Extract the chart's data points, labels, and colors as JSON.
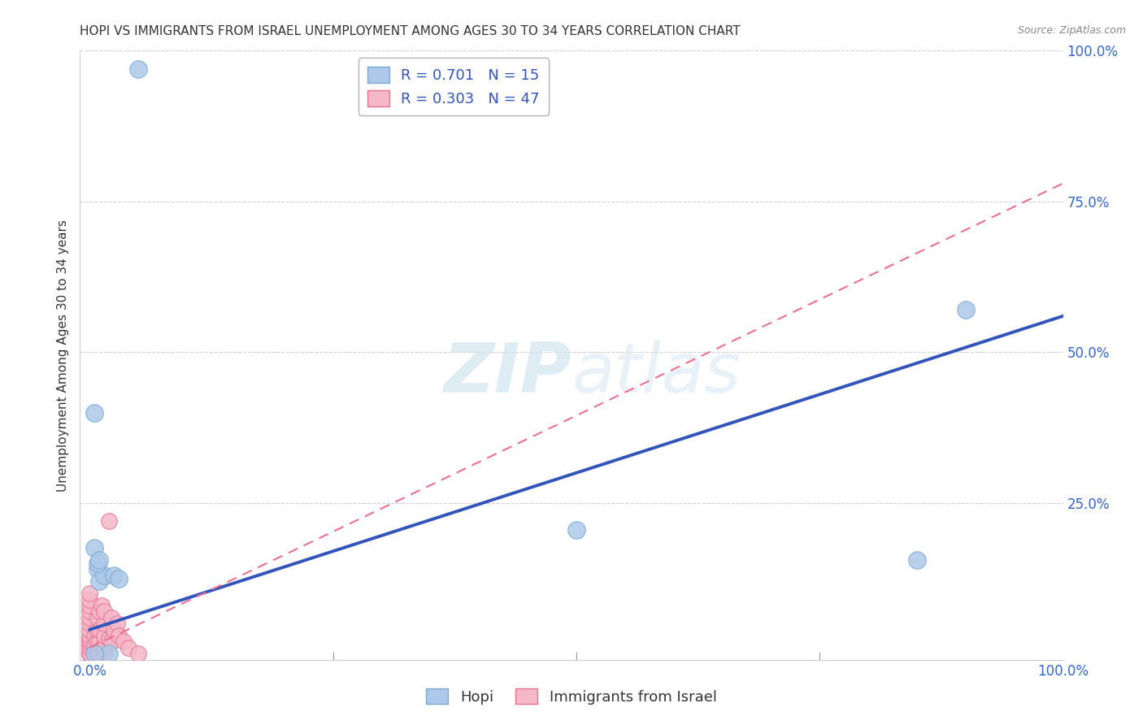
{
  "title": "HOPI VS IMMIGRANTS FROM ISRAEL UNEMPLOYMENT AMONG AGES 30 TO 34 YEARS CORRELATION CHART",
  "source": "Source: ZipAtlas.com",
  "ylabel": "Unemployment Among Ages 30 to 34 years",
  "xlabel": "",
  "xlim": [
    -0.01,
    1.0
  ],
  "ylim": [
    -0.01,
    1.0
  ],
  "xticks": [
    0.0,
    1.0
  ],
  "yticks": [
    0.25,
    0.5,
    0.75,
    1.0
  ],
  "xtick_labels": [
    "0.0%",
    "100.0%"
  ],
  "ytick_labels": [
    "25.0%",
    "50.0%",
    "75.0%",
    "100.0%"
  ],
  "background_color": "#ffffff",
  "grid_color": "#cccccc",
  "hopi_color": "#adc8e8",
  "hopi_edge_color": "#7aaad0",
  "israel_color": "#f5b8c8",
  "israel_edge_color": "#e87090",
  "hopi_R": 0.701,
  "hopi_N": 15,
  "israel_R": 0.303,
  "israel_N": 47,
  "hopi_line_color": "#3355bb",
  "israel_line_color": "#e87090",
  "watermark_color": "#d0e4f0",
  "hopi_line_start_y": 0.04,
  "hopi_line_end_y": 0.56,
  "israel_line_start_y": 0.01,
  "israel_line_end_y": 0.78,
  "hopi_points_x": [
    0.005,
    0.005,
    0.008,
    0.01,
    0.015,
    0.02,
    0.025,
    0.03,
    0.05,
    0.5,
    0.85,
    0.9,
    0.008,
    0.01,
    0.005
  ],
  "hopi_points_y": [
    0.4,
    0.175,
    0.14,
    0.12,
    0.13,
    0.0,
    0.13,
    0.125,
    0.97,
    0.205,
    0.155,
    0.57,
    0.15,
    0.155,
    0.0
  ],
  "israel_points_x": [
    0.0,
    0.0,
    0.0,
    0.0,
    0.0,
    0.0,
    0.0,
    0.0,
    0.0,
    0.0,
    0.0,
    0.0,
    0.0,
    0.0,
    0.0,
    0.0,
    0.0,
    0.0,
    0.005,
    0.005,
    0.005,
    0.007,
    0.007,
    0.007,
    0.008,
    0.008,
    0.01,
    0.01,
    0.01,
    0.01,
    0.012,
    0.012,
    0.015,
    0.015,
    0.015,
    0.015,
    0.015,
    0.02,
    0.02,
    0.022,
    0.022,
    0.025,
    0.028,
    0.03,
    0.035,
    0.04,
    0.05
  ],
  "israel_points_y": [
    0.0,
    0.0,
    0.0,
    0.0,
    0.0,
    0.0,
    0.01,
    0.015,
    0.02,
    0.025,
    0.03,
    0.04,
    0.05,
    0.06,
    0.07,
    0.08,
    0.09,
    0.1,
    0.0,
    0.015,
    0.03,
    0.0,
    0.02,
    0.04,
    0.0,
    0.06,
    0.0,
    0.02,
    0.04,
    0.07,
    0.01,
    0.08,
    0.0,
    0.01,
    0.03,
    0.05,
    0.07,
    0.025,
    0.22,
    0.02,
    0.06,
    0.04,
    0.05,
    0.03,
    0.02,
    0.01,
    0.0
  ],
  "title_fontsize": 11,
  "axis_label_fontsize": 11,
  "tick_fontsize": 12,
  "legend_fontsize": 13
}
